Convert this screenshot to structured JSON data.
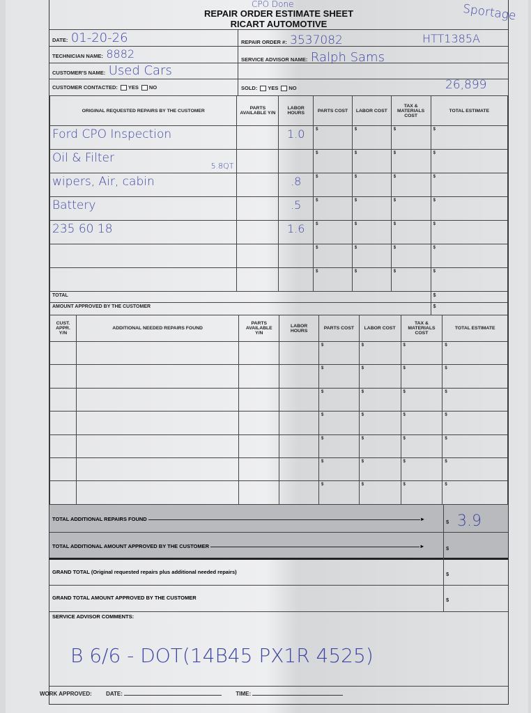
{
  "header": {
    "scribble_top": "CPO Done",
    "title_line1": "REPAIR ORDER ESTIMATE SHEET",
    "title_line2": "RICART AUTOMOTIVE",
    "model_note": "Sportage",
    "stock_note": "HTT1385A",
    "price_note": "26,899",
    "date_label": "DATE:",
    "date_value": "01-20-26",
    "technician_label": "TECHNICIAN NAME:",
    "technician_value": "8882",
    "customer_label": "CUSTOMER'S NAME:",
    "customer_value": "Used Cars",
    "repair_order_label": "REPAIR ORDER #:",
    "repair_order_value": "3537082",
    "advisor_label": "SERVICE ADVISOR NAME:",
    "advisor_value": "Ralph Sams",
    "contacted_label": "CUSTOMER CONTACTED:",
    "sold_label": "SOLD:",
    "yes": "YES",
    "no": "NO"
  },
  "currency": "$",
  "original": {
    "headers": [
      "ORIGINAL REQUESTED REPAIRS BY THE CUSTOMER",
      "PARTS AVAILABLE Y/N",
      "LABOR HOURS",
      "PARTS COST",
      "LABOR COST",
      "TAX & MATERIALS COST",
      "TOTAL ESTIMATE"
    ],
    "rows": [
      {
        "desc": "Ford CPO Inspection",
        "note": "",
        "hours": "1.0"
      },
      {
        "desc": "Oil & Filter",
        "note": "5.8QT",
        "hours": ""
      },
      {
        "desc": "wipers, Air, cabin",
        "note": "",
        "hours": ".8"
      },
      {
        "desc": "Battery",
        "note": "",
        "hours": ".5"
      },
      {
        "desc": "235 60 18",
        "note": "",
        "hours": "1.6"
      },
      {
        "desc": "",
        "note": "",
        "hours": ""
      },
      {
        "desc": "",
        "note": "",
        "hours": ""
      }
    ],
    "total_label": "TOTAL",
    "approved_label": "AMOUNT APPROVED BY THE CUSTOMER"
  },
  "additional": {
    "headers": [
      "CUST. APPR. Y/N",
      "ADDITIONAL NEEDED REPAIRS FOUND",
      "PARTS AVAILABLE Y/N",
      "LABOR HOURS",
      "PARTS COST",
      "LABOR COST",
      "TAX & MATERIALS COST",
      "TOTAL ESTIMATE"
    ],
    "row_count": 7
  },
  "totals": {
    "additional_found_label": "TOTAL ADDITIONAL REPAIRS FOUND",
    "additional_found_value": "3.9",
    "additional_approved_label": "TOTAL ADDITIONAL AMOUNT APPROVED BY THE CUSTOMER",
    "grand_total_label": "GRAND TOTAL (Original requested repairs plus additional needed repairs)",
    "grand_approved_label": "GRAND TOTAL AMOUNT APPROVED BY THE CUSTOMER"
  },
  "comments": {
    "label": "SERVICE ADVISOR COMMENTS:",
    "value": "B 6/6 - DOT(14B45 PX1R 4525)"
  },
  "footer": {
    "work_approved": "WORK APPROVED:",
    "date": "DATE:",
    "time": "TIME:"
  }
}
